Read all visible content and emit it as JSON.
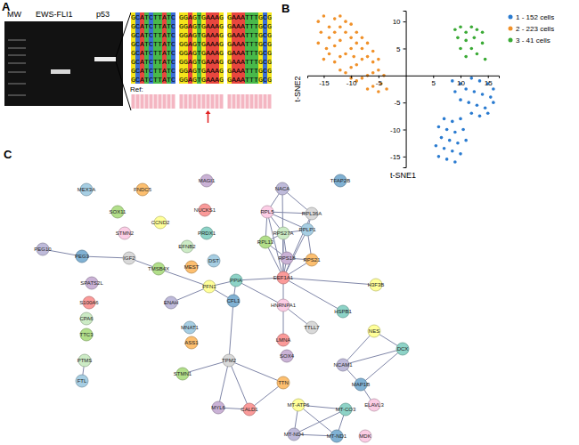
{
  "panel_labels": [
    "A",
    "B",
    "C"
  ],
  "panel_a": {
    "gel_lanes": [
      "MW",
      "EWS-FLI1",
      "p53"
    ],
    "sequence_rows": [
      [
        "GCATCTTATC",
        "GGAGTGAAAG",
        "GAAATTTGCG"
      ],
      [
        "GCATCTTATC",
        "GGAGTGAAAG",
        "GAAATTTGCG"
      ],
      [
        "GCATCTTATC",
        "GGAGTGAAAG",
        "GAAATTTGCG"
      ],
      [
        "GCATCTTATC",
        "GGAGTGAAAG",
        "GAAATTTGCG"
      ],
      [
        "GCATCTTATC",
        "GGAGTGAAAG",
        "GAAATTTGCG"
      ],
      [
        "GCATCTTATC",
        "GGAGTGAAAG",
        "GAAATTTGCG"
      ],
      [
        "GCATCTTATC",
        "GGAGTGAAAG",
        "GAAATTTGCG"
      ],
      [
        "GCATCTTATC",
        "GGAGTGAAAG",
        "GAAATTTGCG"
      ]
    ],
    "ref_label": "Ref:"
  },
  "chart_data": {
    "type": "scatter",
    "x_label": "t-SNE1",
    "y_label": "t-SNE2",
    "xlim": [
      -18,
      17
    ],
    "ylim": [
      -17,
      12
    ],
    "xticks": [
      -15,
      -10,
      -5,
      5,
      10,
      15
    ],
    "yticks": [
      -15,
      -10,
      -5,
      5,
      10
    ],
    "legend": "upper right",
    "marker": "circle",
    "series": [
      {
        "name": "1 - 152 cells",
        "color": "#2a7bd0",
        "x": [
          8.5,
          10,
          12,
          13.5,
          15,
          16,
          9,
          11,
          12.5,
          14,
          15.5,
          10,
          11.5,
          13,
          14.5,
          16,
          12,
          13.5,
          15,
          7,
          8.5,
          10,
          6,
          7.5,
          9,
          10.5,
          6.5,
          8,
          9.5,
          11,
          5.5,
          7,
          8.5,
          10,
          6,
          7.5,
          9
        ],
        "values": [
          -1,
          -1.5,
          -0.5,
          -1,
          -1.5,
          -2.5,
          -3,
          -2.5,
          -3,
          -3.5,
          -4,
          -4.5,
          -5,
          -5.5,
          -6,
          -5,
          -7,
          -7.5,
          -7,
          -8,
          -8.5,
          -8,
          -9.5,
          -10,
          -10.5,
          -10,
          -11.5,
          -12,
          -12.5,
          -12,
          -13,
          -13.5,
          -14,
          -14.5,
          -15,
          -15.5,
          -16
        ]
      },
      {
        "name": "2 - 223 cells",
        "color": "#f0912a",
        "x": [
          -16,
          -15,
          -14,
          -13,
          -12,
          -15.5,
          -14,
          -13,
          -12,
          -11,
          -10,
          -11,
          -12,
          -13,
          -14.5,
          -16,
          -10,
          -9,
          -8,
          -9,
          -10,
          -11,
          -12,
          -13,
          -8,
          -7,
          -6,
          -7,
          -8,
          -9,
          -10,
          -11,
          -6,
          -5,
          -5,
          -6,
          -7,
          -8,
          -9,
          -4,
          -4.5,
          -6,
          -7,
          -3.5,
          -5,
          -14,
          -15,
          -12,
          -10,
          -9.5
        ],
        "values": [
          10,
          11,
          9,
          10.5,
          11,
          8,
          7,
          8,
          9,
          10,
          9.5,
          8,
          6.5,
          5.5,
          5,
          6,
          7,
          8,
          7,
          6,
          5,
          4,
          3.5,
          2.5,
          5,
          6,
          4.5,
          3.5,
          3,
          2,
          1.5,
          0.5,
          2.5,
          3,
          1,
          0.5,
          0,
          -0.5,
          -1,
          0,
          -1.5,
          -2,
          -2.5,
          -2.5,
          -3,
          4,
          3,
          1,
          -0.5,
          3.5
        ]
      },
      {
        "name": "3 - 41 cells",
        "color": "#3aaa35",
        "x": [
          9,
          10,
          11,
          12,
          13,
          14,
          9.5,
          11,
          12.5,
          14,
          10,
          12,
          13,
          11,
          14.5
        ],
        "values": [
          8.5,
          9,
          8,
          9,
          8.5,
          8,
          7,
          6.5,
          7,
          6,
          5,
          5,
          4,
          3.5,
          3
        ]
      }
    ]
  },
  "network": {
    "nodes": [
      "MEX3A",
      "SOX11",
      "FNDC5",
      "MAGI1",
      "NUCKS1",
      "CCND2",
      "PRDX1",
      "NACA",
      "TFAP2B",
      "RPL5",
      "RPL36A",
      "RPS27A",
      "RPLP1",
      "RPL13",
      "RPS21",
      "RPS18",
      "EEF1A1",
      "H3F3B",
      "HSPB1",
      "PEG10",
      "PEG3",
      "STMN2",
      "IGF2",
      "EFNB2",
      "DST",
      "TMSB4X",
      "MEST",
      "SPATS2L",
      "S100A6",
      "PFN1",
      "PPIA",
      "ENAH",
      "CFL1",
      "HNRNPA1",
      "TTLL7",
      "CPA6",
      "MNAT1",
      "TTC3",
      "ASS1",
      "SOX4",
      "LMNA",
      "NES",
      "DCX",
      "NCAM1",
      "MAP1B",
      "ELAVL3",
      "TPM2",
      "PTMS",
      "FTL",
      "STMN1",
      "TTN",
      "MYL6",
      "CALD1",
      "MT-ATP6",
      "MT-CO3",
      "MT-ND4",
      "MT-ND1",
      "MDK"
    ],
    "edges": [
      [
        "RPL5",
        "RPL36A"
      ],
      [
        "RPL5",
        "RPS27A"
      ],
      [
        "RPL5",
        "RPLP1"
      ],
      [
        "RPL5",
        "RPL13"
      ],
      [
        "RPL5",
        "EEF1A1"
      ],
      [
        "RPL36A",
        "RPLP1"
      ],
      [
        "RPL36A",
        "EEF1A1"
      ],
      [
        "RPS27A",
        "RPLP1"
      ],
      [
        "RPS27A",
        "RPL13"
      ],
      [
        "RPS27A",
        "RPS18"
      ],
      [
        "RPS27A",
        "EEF1A1"
      ],
      [
        "RPLP1",
        "RPS21"
      ],
      [
        "RPLP1",
        "EEF1A1"
      ],
      [
        "RPL13",
        "RPS18"
      ],
      [
        "RPL13",
        "EEF1A1"
      ],
      [
        "RPS21",
        "RPS18"
      ],
      [
        "RPS21",
        "EEF1A1"
      ],
      [
        "RPS18",
        "EEF1A1"
      ],
      [
        "NACA",
        "RPL5"
      ],
      [
        "NACA",
        "EEF1A1"
      ],
      [
        "NACA",
        "RPL36A"
      ],
      [
        "EEF1A1",
        "H3F3B"
      ],
      [
        "EEF1A1",
        "HSPB1"
      ],
      [
        "EEF1A1",
        "HNRNPA1"
      ],
      [
        "EEF1A1",
        "PPIA"
      ],
      [
        "PEG10",
        "PEG3"
      ],
      [
        "PEG3",
        "IGF2"
      ],
      [
        "IGF2",
        "TMSB4X"
      ],
      [
        "TMSB4X",
        "PFN1"
      ],
      [
        "PFN1",
        "ENAH"
      ],
      [
        "PFN1",
        "CFL1"
      ],
      [
        "PFN1",
        "PPIA"
      ],
      [
        "PPIA",
        "CFL1"
      ],
      [
        "PPIA",
        "HNRNPA1"
      ],
      [
        "CFL1",
        "TPM2"
      ],
      [
        "TPM2",
        "MYL6"
      ],
      [
        "TPM2",
        "CALD1"
      ],
      [
        "MYL6",
        "CALD1"
      ],
      [
        "TPM2",
        "TTN"
      ],
      [
        "TPM2",
        "STMN1"
      ],
      [
        "HNRNPA1",
        "TTLL7"
      ],
      [
        "HNRNPA1",
        "LMNA"
      ],
      [
        "NES",
        "NCAM1"
      ],
      [
        "NES",
        "DCX"
      ],
      [
        "NCAM1",
        "DCX"
      ],
      [
        "NCAM1",
        "MAP1B"
      ],
      [
        "DCX",
        "MAP1B"
      ],
      [
        "MAP1B",
        "ELAVL3"
      ],
      [
        "MT-ATP6",
        "MT-CO3"
      ],
      [
        "MT-ATP6",
        "MT-ND4"
      ],
      [
        "MT-ATP6",
        "MT-ND1"
      ],
      [
        "MT-CO3",
        "MT-ND4"
      ],
      [
        "MT-CO3",
        "MT-ND1"
      ],
      [
        "MT-ND4",
        "MT-ND1"
      ],
      [
        "PTMS",
        "FTL"
      ],
      [
        "CALD1",
        "TTN"
      ]
    ]
  }
}
